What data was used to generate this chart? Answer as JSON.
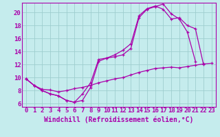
{
  "xlabel": "Windchill (Refroidissement éolien,°C)",
  "xlim": [
    -0.5,
    23.5
  ],
  "ylim": [
    5.5,
    21.5
  ],
  "xticks": [
    0,
    1,
    2,
    3,
    4,
    5,
    6,
    7,
    8,
    9,
    10,
    11,
    12,
    13,
    14,
    15,
    16,
    17,
    18,
    19,
    20,
    21,
    22,
    23
  ],
  "yticks": [
    6,
    8,
    10,
    12,
    14,
    16,
    18,
    20
  ],
  "background_color": "#c5eced",
  "grid_color": "#9ecece",
  "line_color": "#aa00aa",
  "line1_x": [
    0,
    1,
    2,
    3,
    4,
    5,
    6,
    7,
    8,
    9,
    10,
    11,
    12,
    13,
    14,
    15,
    16,
    17,
    18,
    19,
    20,
    21
  ],
  "line1_y": [
    9.8,
    8.8,
    8.0,
    7.5,
    7.2,
    6.5,
    6.2,
    6.5,
    8.5,
    12.5,
    13.0,
    13.2,
    13.5,
    14.5,
    19.2,
    20.5,
    20.9,
    21.3,
    19.8,
    19.0,
    17.0,
    12.5
  ],
  "line2_x": [
    0,
    1,
    2,
    3,
    4,
    5,
    6,
    7,
    8,
    9,
    10,
    11,
    12,
    13,
    14,
    15,
    16,
    17,
    18,
    19,
    20,
    21,
    22
  ],
  "line2_y": [
    9.8,
    8.8,
    8.0,
    7.5,
    7.2,
    6.5,
    6.2,
    7.5,
    9.2,
    12.8,
    13.0,
    13.5,
    14.2,
    15.2,
    19.5,
    20.6,
    21.0,
    20.5,
    19.0,
    19.2,
    18.0,
    17.5,
    12.0
  ],
  "line3_x": [
    0,
    1,
    2,
    3,
    4,
    5,
    6,
    7,
    8,
    9,
    10,
    11,
    12,
    13,
    14,
    15,
    16,
    17,
    18,
    19,
    20,
    21,
    22,
    23
  ],
  "line3_y": [
    9.8,
    8.8,
    8.2,
    8.1,
    7.8,
    8.0,
    8.3,
    8.5,
    8.8,
    9.2,
    9.5,
    9.8,
    10.0,
    10.4,
    10.8,
    11.1,
    11.4,
    11.5,
    11.6,
    11.5,
    11.7,
    11.9,
    12.1,
    12.2
  ],
  "font_size": 6.5,
  "xlabel_fontsize": 7
}
